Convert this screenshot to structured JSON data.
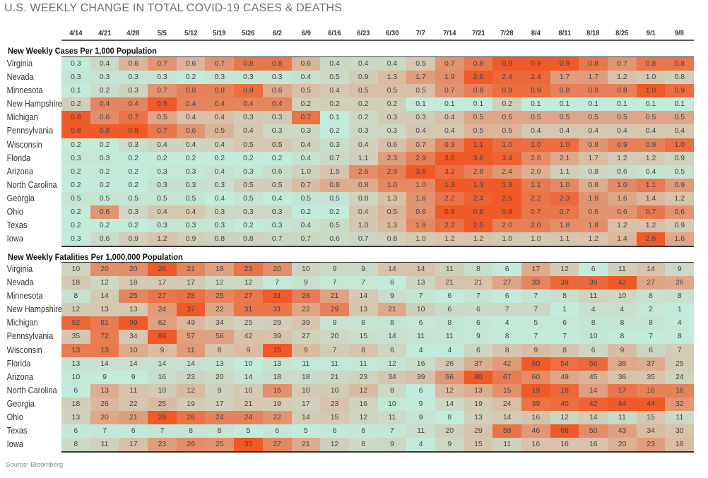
{
  "chart_data": {
    "type": "heatmap",
    "title": "U.S. WEEKLY CHANGE IN TOTAL COVID-19 CASES & DEATHS",
    "source": "Source: Bloomberg",
    "columns": [
      "4/14",
      "4/21",
      "4/28",
      "5/5",
      "5/12",
      "5/19",
      "5/26",
      "6/2",
      "6/9",
      "6/16",
      "6/23",
      "6/30",
      "7/7",
      "7/14",
      "7/21",
      "7/28",
      "8/4",
      "8/11",
      "8/18",
      "8/25",
      "9/1",
      "9/8"
    ],
    "colors": {
      "low": "#c2ebdb",
      "mid": "#d9bea6",
      "high": "#ef5a28"
    },
    "sections": [
      {
        "title": "New Weekly Cases Per 1,000 Population",
        "rows": [
          {
            "state": "Virginia",
            "values": [
              0.3,
              0.4,
              0.6,
              0.7,
              0.6,
              0.7,
              0.8,
              0.8,
              0.6,
              0.4,
              0.4,
              0.4,
              0.5,
              0.7,
              0.8,
              0.9,
              0.9,
              0.9,
              0.8,
              0.7,
              0.8,
              0.8
            ]
          },
          {
            "state": "Nevada",
            "values": [
              0.3,
              0.3,
              0.3,
              0.3,
              0.2,
              0.3,
              0.3,
              0.3,
              0.4,
              0.5,
              0.9,
              1.3,
              1.7,
              1.9,
              2.6,
              2.4,
              2.4,
              1.7,
              1.7,
              1.2,
              1.0,
              0.8
            ]
          },
          {
            "state": "Minnesota",
            "values": [
              0.1,
              0.2,
              0.3,
              0.7,
              0.8,
              0.8,
              0.9,
              0.6,
              0.5,
              0.4,
              0.5,
              0.5,
              0.5,
              0.7,
              0.8,
              0.9,
              0.9,
              0.8,
              0.8,
              0.8,
              1.0,
              0.9
            ]
          },
          {
            "state": "New Hampshire",
            "values": [
              0.2,
              0.4,
              0.4,
              0.5,
              0.4,
              0.4,
              0.4,
              0.4,
              0.2,
              0.2,
              0.2,
              0.2,
              0.1,
              0.1,
              0.1,
              0.2,
              0.1,
              0.1,
              0.1,
              0.1,
              0.1,
              0.1
            ]
          },
          {
            "state": "Michigan",
            "values": [
              0.8,
              0.6,
              0.7,
              0.5,
              0.4,
              0.4,
              0.3,
              0.3,
              0.7,
              0.1,
              0.2,
              0.3,
              0.3,
              0.4,
              0.5,
              0.5,
              0.5,
              0.5,
              0.5,
              0.5,
              0.5,
              0.5
            ]
          },
          {
            "state": "Pennsylvania",
            "values": [
              0.8,
              0.8,
              0.8,
              0.7,
              0.6,
              0.5,
              0.4,
              0.3,
              0.3,
              0.2,
              0.3,
              0.3,
              0.4,
              0.4,
              0.5,
              0.5,
              0.4,
              0.4,
              0.4,
              0.4,
              0.4,
              0.4
            ]
          },
          {
            "state": "Wisconsin",
            "values": [
              0.2,
              0.2,
              0.3,
              0.4,
              0.4,
              0.4,
              0.5,
              0.5,
              0.4,
              0.3,
              0.4,
              0.6,
              0.7,
              0.9,
              1.1,
              1.0,
              1.0,
              1.0,
              0.8,
              0.9,
              0.9,
              1.0
            ]
          },
          {
            "state": "Florida",
            "values": [
              0.3,
              0.3,
              0.2,
              0.2,
              0.2,
              0.2,
              0.2,
              0.2,
              0.4,
              0.7,
              1.1,
              2.3,
              2.9,
              3.6,
              3.6,
              3.4,
              2.6,
              2.1,
              1.7,
              1.2,
              1.2,
              0.9
            ]
          },
          {
            "state": "Arizona",
            "values": [
              0.2,
              0.2,
              0.2,
              0.3,
              0.3,
              0.4,
              0.3,
              0.6,
              1.0,
              1.5,
              2.6,
              2.9,
              3.6,
              3.2,
              2.8,
              2.4,
              2.0,
              1.1,
              0.8,
              0.6,
              0.4,
              0.5
            ]
          },
          {
            "state": "North Carolina",
            "values": [
              0.2,
              0.2,
              0.2,
              0.3,
              0.3,
              0.3,
              0.5,
              0.5,
              0.7,
              0.8,
              0.8,
              1.0,
              1.0,
              1.3,
              1.3,
              1.3,
              1.1,
              1.0,
              0.8,
              1.0,
              1.1,
              0.9
            ]
          },
          {
            "state": "Georgia",
            "values": [
              0.5,
              0.5,
              0.5,
              0.5,
              0.5,
              0.4,
              0.5,
              0.4,
              0.5,
              0.5,
              0.8,
              1.3,
              1.8,
              2.2,
              2.4,
              2.5,
              2.2,
              2.3,
              1.8,
              1.6,
              1.4,
              1.2
            ]
          },
          {
            "state": "Ohio",
            "values": [
              0.2,
              0.6,
              0.3,
              0.4,
              0.4,
              0.3,
              0.3,
              0.3,
              0.2,
              0.2,
              0.4,
              0.5,
              0.6,
              0.8,
              0.8,
              0.8,
              0.7,
              0.7,
              0.6,
              0.6,
              0.7,
              0.6
            ]
          },
          {
            "state": "Texas",
            "values": [
              0.2,
              0.2,
              0.2,
              0.3,
              0.3,
              0.3,
              0.2,
              0.3,
              0.4,
              0.5,
              1.0,
              1.3,
              1.9,
              2.2,
              2.5,
              2.0,
              2.0,
              1.8,
              1.8,
              1.2,
              1.2,
              0.9
            ]
          },
          {
            "state": "Iowa",
            "values": [
              0.3,
              0.6,
              0.9,
              1.2,
              0.9,
              0.8,
              0.8,
              0.7,
              0.7,
              0.6,
              0.7,
              0.8,
              1.0,
              1.2,
              1.2,
              1.0,
              1.0,
              1.1,
              1.2,
              1.4,
              2.6,
              1.6
            ]
          }
        ]
      },
      {
        "title": "New Weekly Fatalities Per 1,000,000 Population",
        "rows": [
          {
            "state": "Virginia",
            "values": [
              10,
              20,
              20,
              26,
              21,
              18,
              23,
              20,
              10,
              9,
              9,
              14,
              14,
              11,
              8,
              6,
              17,
              12,
              6,
              11,
              14,
              9
            ]
          },
          {
            "state": "Nevada",
            "values": [
              18,
              12,
              18,
              17,
              17,
              12,
              12,
              7,
              9,
              7,
              7,
              6,
              13,
              21,
              21,
              27,
              33,
              39,
              39,
              42,
              27,
              26
            ]
          },
          {
            "state": "Minnesota",
            "values": [
              8,
              14,
              25,
              27,
              28,
              25,
              27,
              31,
              26,
              21,
              14,
              9,
              7,
              6,
              7,
              6,
              7,
              8,
              11,
              10,
              8,
              8
            ]
          },
          {
            "state": "New Hampshire",
            "values": [
              12,
              13,
              13,
              24,
              37,
              22,
              31,
              31,
              22,
              29,
              13,
              21,
              10,
              6,
              6,
              7,
              7,
              1,
              4,
              4,
              2,
              1
            ]
          },
          {
            "state": "Michigan",
            "values": [
              92,
              81,
              99,
              62,
              49,
              34,
              25,
              29,
              39,
              9,
              8,
              8,
              6,
              8,
              6,
              4,
              5,
              6,
              8,
              8,
              8,
              4
            ]
          },
          {
            "state": "Pennsylvania",
            "values": [
              35,
              72,
              34,
              89,
              57,
              56,
              42,
              39,
              27,
              20,
              15,
              14,
              11,
              11,
              9,
              8,
              7,
              7,
              10,
              8,
              7,
              8
            ]
          },
          {
            "state": "Wisconsin",
            "values": [
              13,
              13,
              10,
              9,
              11,
              8,
              9,
              15,
              9,
              7,
              8,
              6,
              4,
              4,
              6,
              8,
              9,
              8,
              6,
              9,
              6,
              7
            ]
          },
          {
            "state": "Florida",
            "values": [
              13,
              14,
              14,
              14,
              14,
              13,
              10,
              13,
              11,
              11,
              11,
              12,
              16,
              26,
              37,
              42,
              60,
              54,
              56,
              38,
              37,
              25
            ]
          },
          {
            "state": "Arizona",
            "values": [
              10,
              9,
              9,
              16,
              23,
              20,
              14,
              18,
              18,
              21,
              23,
              34,
              39,
              56,
              80,
              67,
              60,
              49,
              45,
              36,
              35,
              24
            ]
          },
          {
            "state": "North Carolina",
            "values": [
              6,
              13,
              11,
              10,
              12,
              9,
              10,
              15,
              10,
              10,
              12,
              8,
              6,
              12,
              13,
              15,
              19,
              18,
              14,
              17,
              16,
              16
            ]
          },
          {
            "state": "Georgia",
            "values": [
              18,
              26,
              22,
              25,
              19,
              17,
              21,
              19,
              17,
              23,
              16,
              10,
              9,
              14,
              19,
              24,
              39,
              40,
              42,
              44,
              44,
              32
            ]
          },
          {
            "state": "Ohio",
            "values": [
              13,
              20,
              21,
              29,
              26,
              24,
              24,
              22,
              14,
              15,
              12,
              11,
              9,
              8,
              13,
              14,
              16,
              12,
              14,
              11,
              15,
              11
            ]
          },
          {
            "state": "Texas",
            "values": [
              6,
              7,
              6,
              7,
              8,
              8,
              5,
              6,
              5,
              6,
              6,
              7,
              11,
              20,
              29,
              59,
              46,
              68,
              50,
              43,
              34,
              30
            ]
          },
          {
            "state": "Iowa",
            "values": [
              8,
              11,
              17,
              23,
              26,
              25,
              35,
              27,
              21,
              12,
              8,
              9,
              4,
              9,
              15,
              11,
              16,
              16,
              16,
              20,
              23,
              18
            ]
          }
        ]
      }
    ]
  }
}
